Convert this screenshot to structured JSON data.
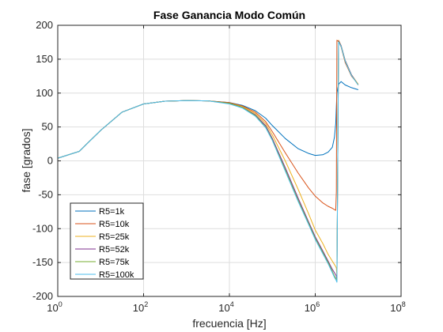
{
  "chart_data": {
    "type": "line",
    "title": "Fase Ganancia Modo Común",
    "xlabel": "frecuencia [Hz]",
    "ylabel": "fase [grados]",
    "xscale": "log",
    "xlim": [
      1,
      100000000
    ],
    "ylim": [
      -200,
      200
    ],
    "grid": true,
    "legend_position": "bottom-left",
    "x_ticks": [
      {
        "base": "10",
        "exp": "0"
      },
      {
        "base": "10",
        "exp": "2"
      },
      {
        "base": "10",
        "exp": "4"
      },
      {
        "base": "10",
        "exp": "6"
      },
      {
        "base": "10",
        "exp": "8"
      }
    ],
    "y_ticks": [
      "200",
      "150",
      "100",
      "50",
      "0",
      "-50",
      "-100",
      "-150",
      "-200"
    ],
    "x": [
      1,
      3.16,
      10,
      31.6,
      100,
      316,
      1000,
      3160,
      10000,
      20000,
      40000,
      70000,
      100000,
      200000,
      400000,
      700000,
      1000000,
      1500000,
      2000000,
      2500000,
      2800000,
      3000000,
      3100000,
      3200000,
      3500000,
      4000000,
      5000000,
      7000000,
      10000000
    ],
    "series": [
      {
        "name": "R5=1k",
        "color": "#0072BD",
        "values": [
          4,
          14,
          45,
          72,
          84,
          88,
          89,
          88.5,
          86,
          82,
          74,
          63,
          52,
          33,
          18,
          11,
          8,
          9,
          13,
          20,
          35,
          55,
          80,
          100,
          113,
          117,
          112,
          108,
          105
        ]
      },
      {
        "name": "R5=10k",
        "color": "#D95319",
        "values": [
          4,
          14,
          45,
          72,
          84,
          88,
          89,
          88.5,
          86,
          81,
          72,
          58,
          43,
          12,
          -18,
          -40,
          -52,
          -62,
          -67,
          -70,
          -72,
          -73,
          -45,
          178,
          176,
          168,
          145,
          125,
          113
        ]
      },
      {
        "name": "R5=25k",
        "color": "#EDB120",
        "values": [
          4,
          14,
          45,
          72,
          84,
          88,
          89,
          88.5,
          85,
          80,
          70,
          55,
          38,
          0,
          -42,
          -78,
          -102,
          -122,
          -138,
          -148,
          -153,
          -156,
          -158,
          -170,
          178,
          170,
          148,
          127,
          113
        ]
      },
      {
        "name": "R5=52k",
        "color": "#7E2F8E",
        "values": [
          4,
          14,
          45,
          72,
          84,
          88,
          89,
          88.5,
          85,
          79,
          68,
          52,
          33,
          -10,
          -55,
          -90,
          -112,
          -133,
          -148,
          -160,
          -165,
          -168,
          -170,
          -175,
          177,
          170,
          148,
          127,
          112
        ]
      },
      {
        "name": "R5=75k",
        "color": "#77AC30",
        "values": [
          4,
          14,
          45,
          72,
          84,
          88,
          89,
          88.5,
          85,
          79,
          67,
          50,
          31,
          -13,
          -58,
          -92,
          -114,
          -135,
          -150,
          -163,
          -170,
          -173,
          -175,
          -178,
          176,
          169,
          147,
          126,
          112
        ]
      },
      {
        "name": "R5=100k",
        "color": "#4DBEEE",
        "values": [
          4,
          14,
          45,
          72,
          84,
          88,
          89,
          88.5,
          84,
          78,
          66,
          49,
          30,
          -15,
          -60,
          -94,
          -116,
          -137,
          -152,
          -165,
          -172,
          -175,
          -177,
          -179,
          175,
          169,
          147,
          126,
          112
        ]
      }
    ]
  }
}
